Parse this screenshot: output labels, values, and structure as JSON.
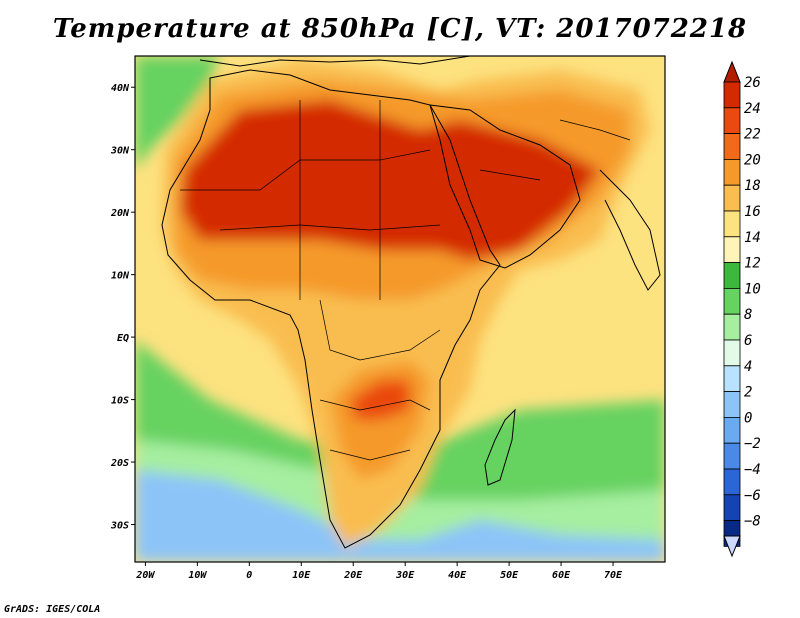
{
  "title": "Temperature at 850hPa [C], VT: 2017072218",
  "credit": "GrADS: IGES/COLA",
  "map": {
    "lon_range": [
      -22,
      80
    ],
    "lat_range": [
      -36,
      45
    ],
    "lon_ticks": [
      {
        "value": -20,
        "label": "20W"
      },
      {
        "value": -10,
        "label": "10W"
      },
      {
        "value": 0,
        "label": "0"
      },
      {
        "value": 10,
        "label": "10E"
      },
      {
        "value": 20,
        "label": "20E"
      },
      {
        "value": 30,
        "label": "30E"
      },
      {
        "value": 40,
        "label": "40E"
      },
      {
        "value": 50,
        "label": "50E"
      },
      {
        "value": 60,
        "label": "60E"
      },
      {
        "value": 70,
        "label": "70E"
      }
    ],
    "lat_ticks": [
      {
        "value": 40,
        "label": "40N"
      },
      {
        "value": 30,
        "label": "30N"
      },
      {
        "value": 20,
        "label": "20N"
      },
      {
        "value": 10,
        "label": "10N"
      },
      {
        "value": 0,
        "label": "EQ"
      },
      {
        "value": -10,
        "label": "10S"
      },
      {
        "value": -20,
        "label": "20S"
      },
      {
        "value": -30,
        "label": "30S"
      }
    ]
  },
  "colorbar": {
    "levels": [
      {
        "label": "26",
        "color": "#d42a00"
      },
      {
        "label": "24",
        "color": "#ea4a10"
      },
      {
        "label": "22",
        "color": "#f06a1a"
      },
      {
        "label": "20",
        "color": "#f59a2a"
      },
      {
        "label": "18",
        "color": "#f9bd50"
      },
      {
        "label": "16",
        "color": "#fde280"
      },
      {
        "label": "14",
        "color": "#fff4b8"
      },
      {
        "label": "12",
        "color": "#3cb83c"
      },
      {
        "label": "10",
        "color": "#66d260"
      },
      {
        "label": "8",
        "color": "#a6eea0"
      },
      {
        "label": "6",
        "color": "#e2fae8"
      },
      {
        "label": "4",
        "color": "#b8e2ff"
      },
      {
        "label": "2",
        "color": "#8cc4f8"
      },
      {
        "label": "0",
        "color": "#6aaaf0"
      },
      {
        "label": "−2",
        "color": "#4a8ae6"
      },
      {
        "label": "−4",
        "color": "#2a66d6"
      },
      {
        "label": "−6",
        "color": "#1444b4"
      },
      {
        "label": "−8",
        "color": "#082a86"
      }
    ],
    "top_arrow_color": "#b41e00",
    "bottom_arrow_color": "#ccd8ff"
  },
  "colors": {
    "land_hot": "#d42a00",
    "land_warm": "#ea4a10",
    "land_mid": "#f59a2a",
    "land_mild": "#f9bd50",
    "ocean_warm": "#fde280",
    "ocean_cool": "#66d260",
    "ocean_cold": "#a6eea0",
    "ocean_colder": "#8cc4f8"
  }
}
